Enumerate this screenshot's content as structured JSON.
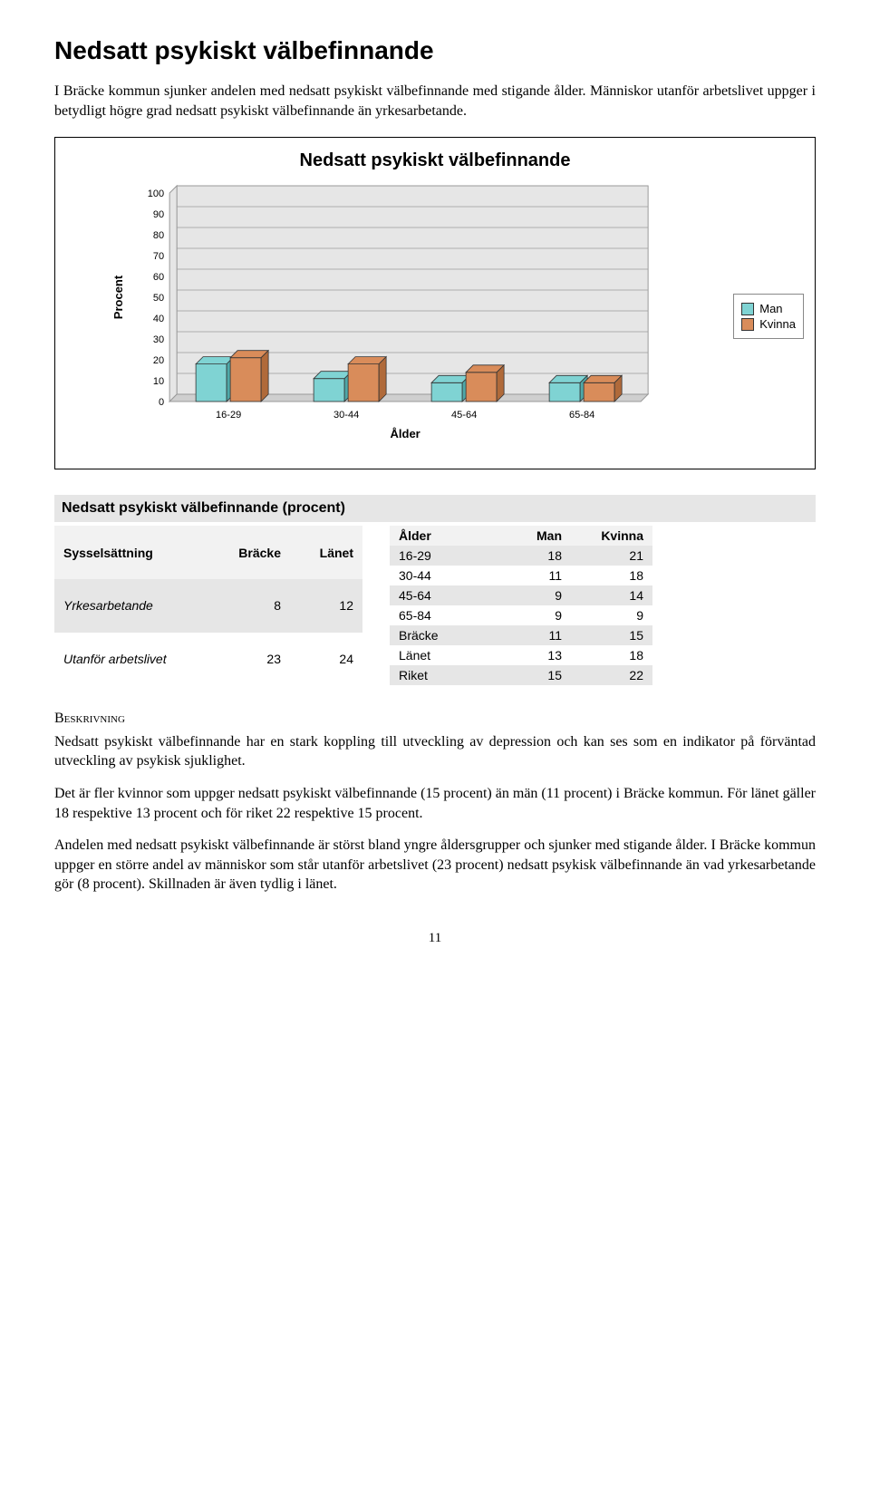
{
  "heading": "Nedsatt psykiskt välbefinnande",
  "intro": "I Bräcke kommun sjunker andelen med nedsatt psykiskt välbefinnande med stigande ålder. Människor utanför arbetslivet uppger i betydligt högre grad nedsatt psykiskt välbefinnande än yrkesarbetande.",
  "chart": {
    "title": "Nedsatt psykiskt välbefinnande",
    "type": "bar",
    "y_label": "Procent",
    "x_label": "Ålder",
    "categories": [
      "16-29",
      "30-44",
      "45-64",
      "65-84"
    ],
    "series": [
      {
        "name": "Man",
        "color": "#7fd3d3",
        "values": [
          18,
          11,
          9,
          9
        ]
      },
      {
        "name": "Kvinna",
        "color": "#d98c5a",
        "values": [
          21,
          18,
          14,
          9
        ]
      }
    ],
    "ylim": [
      0,
      100
    ],
    "ytick_step": 10,
    "plot_bg": "#e6e6e6",
    "grid_color": "#9a9a9a",
    "bar_border": "#333333",
    "threeD_shade_man": "#4fa8a8",
    "threeD_shade_kvinna": "#b06a3a"
  },
  "tables_title": "Nedsatt psykiskt välbefinnande (procent)",
  "table_left": {
    "headers": [
      "Sysselsättning",
      "Bräcke",
      "Länet"
    ],
    "rows": [
      [
        "Yrkesarbetande",
        "8",
        "12"
      ],
      [
        "Utanför arbetslivet",
        "23",
        "24"
      ]
    ],
    "italic_col0": true
  },
  "table_right": {
    "headers": [
      "Ålder",
      "Man",
      "Kvinna"
    ],
    "rows": [
      [
        "16-29",
        "18",
        "21"
      ],
      [
        "30-44",
        "11",
        "18"
      ],
      [
        "45-64",
        "9",
        "14"
      ],
      [
        "65-84",
        "9",
        "9"
      ],
      [
        "Bräcke",
        "11",
        "15"
      ],
      [
        "Länet",
        "13",
        "18"
      ],
      [
        "Riket",
        "15",
        "22"
      ]
    ]
  },
  "desc_head": "Beskrivning",
  "para1": "Nedsatt psykiskt välbefinnande har en stark koppling till utveckling av depression och kan ses som en indikator på förväntad utveckling av psykisk sjuklighet.",
  "para2": "Det är fler kvinnor som uppger nedsatt psykiskt välbefinnande (15 procent) än män (11 procent) i Bräcke kommun. För länet gäller 18 respektive 13 procent och för riket 22 respektive 15 procent.",
  "para3": "Andelen med nedsatt psykiskt välbefinnande är störst bland yngre åldersgrupper och sjunker med stigande ålder. I Bräcke kommun uppger en större andel av människor som står utanför arbetslivet (23 procent) nedsatt psykisk välbefinnande än vad yrkes­arbetande gör (8 procent). Skillnaden är även tydlig i länet.",
  "page_number": "11"
}
